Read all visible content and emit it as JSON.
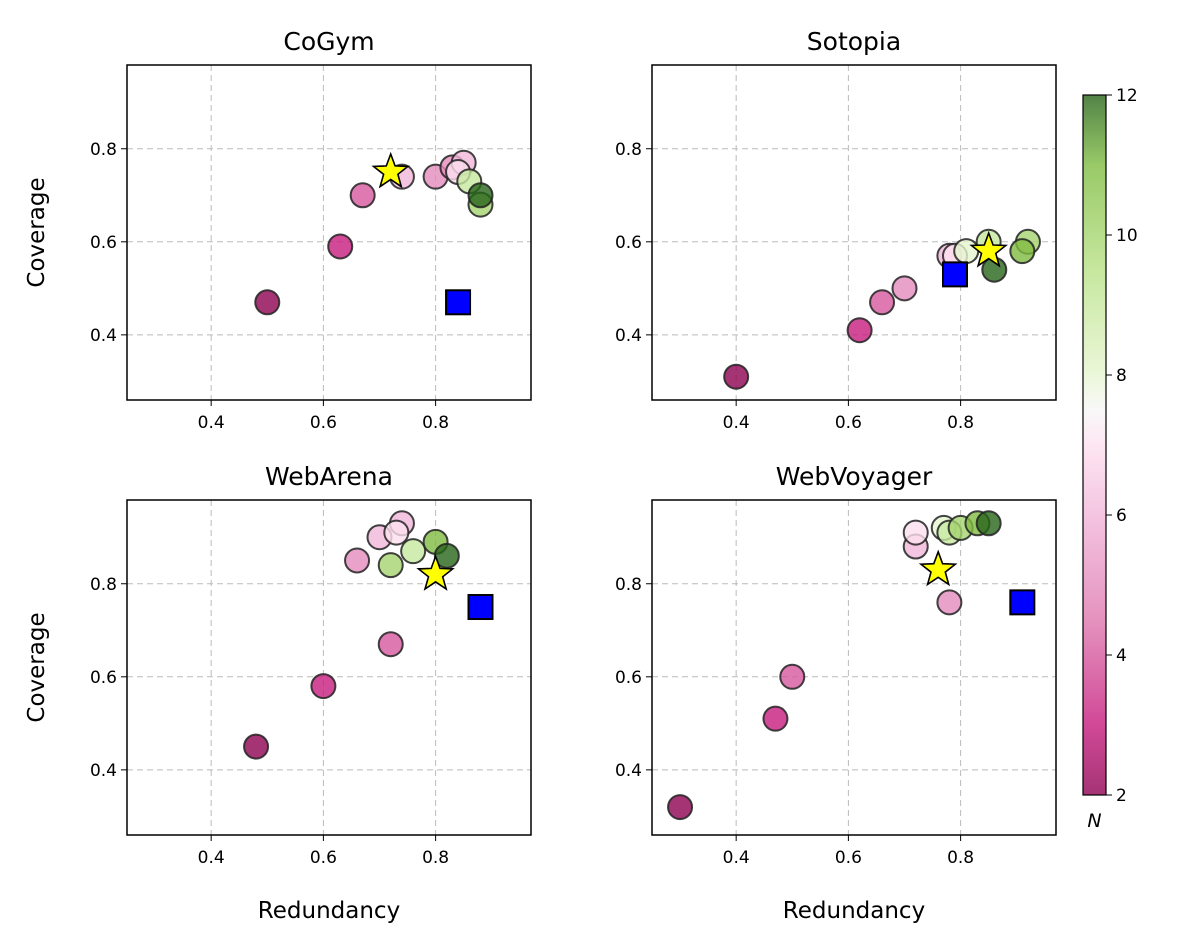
{
  "chart_data": [
    {
      "type": "scatter",
      "title": "CoGym",
      "xlabel": "",
      "ylabel": "Coverage",
      "xlim": [
        0.25,
        0.97
      ],
      "ylim": [
        0.26,
        0.98
      ],
      "xticks": [
        "0.4",
        "0.6",
        "0.8"
      ],
      "yticks": [
        "0.4",
        "0.6",
        "0.8"
      ],
      "grid": true,
      "points": [
        {
          "N": 2,
          "x": 0.5,
          "y": 0.47
        },
        {
          "N": 3,
          "x": 0.63,
          "y": 0.59
        },
        {
          "N": 4,
          "x": 0.67,
          "y": 0.7
        },
        {
          "N": 5,
          "x": 0.8,
          "y": 0.74
        },
        {
          "N": 5,
          "x": 0.83,
          "y": 0.76
        },
        {
          "N": 6,
          "x": 0.85,
          "y": 0.77
        },
        {
          "N": 6,
          "x": 0.74,
          "y": 0.74
        },
        {
          "N": 7,
          "x": 0.84,
          "y": 0.75
        },
        {
          "N": 9,
          "x": 0.86,
          "y": 0.73
        },
        {
          "N": 10,
          "x": 0.88,
          "y": 0.68
        },
        {
          "N": 12,
          "x": 0.88,
          "y": 0.7
        }
      ],
      "star": {
        "x": 0.72,
        "y": 0.75
      },
      "square": {
        "x": 0.84,
        "y": 0.47
      }
    },
    {
      "type": "scatter",
      "title": "Sotopia",
      "xlabel": "",
      "ylabel": "",
      "xlim": [
        0.25,
        0.97
      ],
      "ylim": [
        0.26,
        0.98
      ],
      "xticks": [
        "0.4",
        "0.6",
        "0.8"
      ],
      "yticks": [
        "0.4",
        "0.6",
        "0.8"
      ],
      "grid": true,
      "points": [
        {
          "N": 2,
          "x": 0.4,
          "y": 0.31
        },
        {
          "N": 3,
          "x": 0.62,
          "y": 0.41
        },
        {
          "N": 4,
          "x": 0.66,
          "y": 0.47
        },
        {
          "N": 5,
          "x": 0.7,
          "y": 0.5
        },
        {
          "N": 6,
          "x": 0.78,
          "y": 0.57
        },
        {
          "N": 7,
          "x": 0.79,
          "y": 0.57
        },
        {
          "N": 8,
          "x": 0.81,
          "y": 0.58
        },
        {
          "N": 9,
          "x": 0.85,
          "y": 0.6
        },
        {
          "N": 10,
          "x": 0.92,
          "y": 0.6
        },
        {
          "N": 11,
          "x": 0.91,
          "y": 0.58
        },
        {
          "N": 12,
          "x": 0.86,
          "y": 0.54
        }
      ],
      "star": {
        "x": 0.85,
        "y": 0.58
      },
      "square": {
        "x": 0.79,
        "y": 0.53
      }
    },
    {
      "type": "scatter",
      "title": "WebArena",
      "xlabel": "Redundancy",
      "ylabel": "Coverage",
      "xlim": [
        0.25,
        0.97
      ],
      "ylim": [
        0.26,
        0.98
      ],
      "xticks": [
        "0.4",
        "0.6",
        "0.8"
      ],
      "yticks": [
        "0.4",
        "0.6",
        "0.8"
      ],
      "grid": true,
      "points": [
        {
          "N": 2,
          "x": 0.48,
          "y": 0.45
        },
        {
          "N": 3,
          "x": 0.6,
          "y": 0.58
        },
        {
          "N": 4,
          "x": 0.72,
          "y": 0.67
        },
        {
          "N": 5,
          "x": 0.66,
          "y": 0.85
        },
        {
          "N": 6,
          "x": 0.7,
          "y": 0.9
        },
        {
          "N": 6,
          "x": 0.74,
          "y": 0.93
        },
        {
          "N": 7,
          "x": 0.73,
          "y": 0.91
        },
        {
          "N": 9,
          "x": 0.76,
          "y": 0.87
        },
        {
          "N": 10,
          "x": 0.72,
          "y": 0.84
        },
        {
          "N": 11,
          "x": 0.8,
          "y": 0.89
        },
        {
          "N": 12,
          "x": 0.82,
          "y": 0.86
        }
      ],
      "star": {
        "x": 0.8,
        "y": 0.82
      },
      "square": {
        "x": 0.88,
        "y": 0.75
      }
    },
    {
      "type": "scatter",
      "title": "WebVoyager",
      "xlabel": "Redundancy",
      "ylabel": "",
      "xlim": [
        0.25,
        0.97
      ],
      "ylim": [
        0.26,
        0.98
      ],
      "xticks": [
        "0.4",
        "0.6",
        "0.8"
      ],
      "yticks": [
        "0.4",
        "0.6",
        "0.8"
      ],
      "grid": true,
      "points": [
        {
          "N": 2,
          "x": 0.3,
          "y": 0.32
        },
        {
          "N": 3,
          "x": 0.47,
          "y": 0.51
        },
        {
          "N": 4,
          "x": 0.5,
          "y": 0.6
        },
        {
          "N": 5,
          "x": 0.78,
          "y": 0.76
        },
        {
          "N": 6,
          "x": 0.72,
          "y": 0.88
        },
        {
          "N": 7,
          "x": 0.72,
          "y": 0.91
        },
        {
          "N": 8,
          "x": 0.77,
          "y": 0.92
        },
        {
          "N": 9,
          "x": 0.78,
          "y": 0.91
        },
        {
          "N": 10,
          "x": 0.8,
          "y": 0.92
        },
        {
          "N": 11,
          "x": 0.83,
          "y": 0.93
        },
        {
          "N": 12,
          "x": 0.85,
          "y": 0.93
        }
      ],
      "star": {
        "x": 0.76,
        "y": 0.83
      },
      "square": {
        "x": 0.91,
        "y": 0.76
      }
    }
  ],
  "colorbar": {
    "label": "N",
    "min": 2,
    "max": 12,
    "ticks": [
      "2",
      "4",
      "6",
      "8",
      "10",
      "12"
    ],
    "colormap": "PiYG"
  },
  "colors": {
    "star": "#ffff00",
    "square": "#0000ff"
  }
}
